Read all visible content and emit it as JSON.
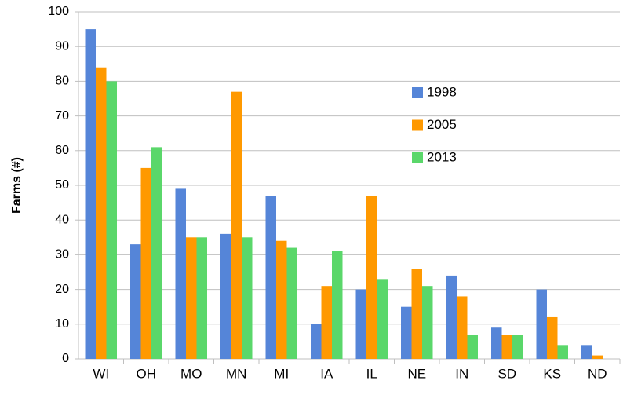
{
  "chart_data": {
    "type": "bar",
    "ylabel": "Farms (#)",
    "categories": [
      "WI",
      "OH",
      "MO",
      "MN",
      "MI",
      "IA",
      "IL",
      "NE",
      "IN",
      "SD",
      "KS",
      "ND"
    ],
    "series": [
      {
        "name": "1998",
        "color": "#5585d8",
        "values": [
          95,
          33,
          49,
          36,
          47,
          10,
          20,
          15,
          24,
          9,
          20,
          4
        ]
      },
      {
        "name": "2005",
        "color": "#ff9900",
        "values": [
          84,
          55,
          35,
          77,
          34,
          21,
          47,
          26,
          18,
          7,
          12,
          1
        ]
      },
      {
        "name": "2013",
        "color": "#5ad76a",
        "values": [
          80,
          61,
          35,
          35,
          32,
          31,
          23,
          21,
          7,
          7,
          4,
          0
        ]
      }
    ],
    "ylim": [
      0,
      100
    ],
    "yticks": [
      0,
      10,
      20,
      30,
      40,
      50,
      60,
      70,
      80,
      90,
      100
    ],
    "grid": true,
    "legend": "upper right"
  }
}
